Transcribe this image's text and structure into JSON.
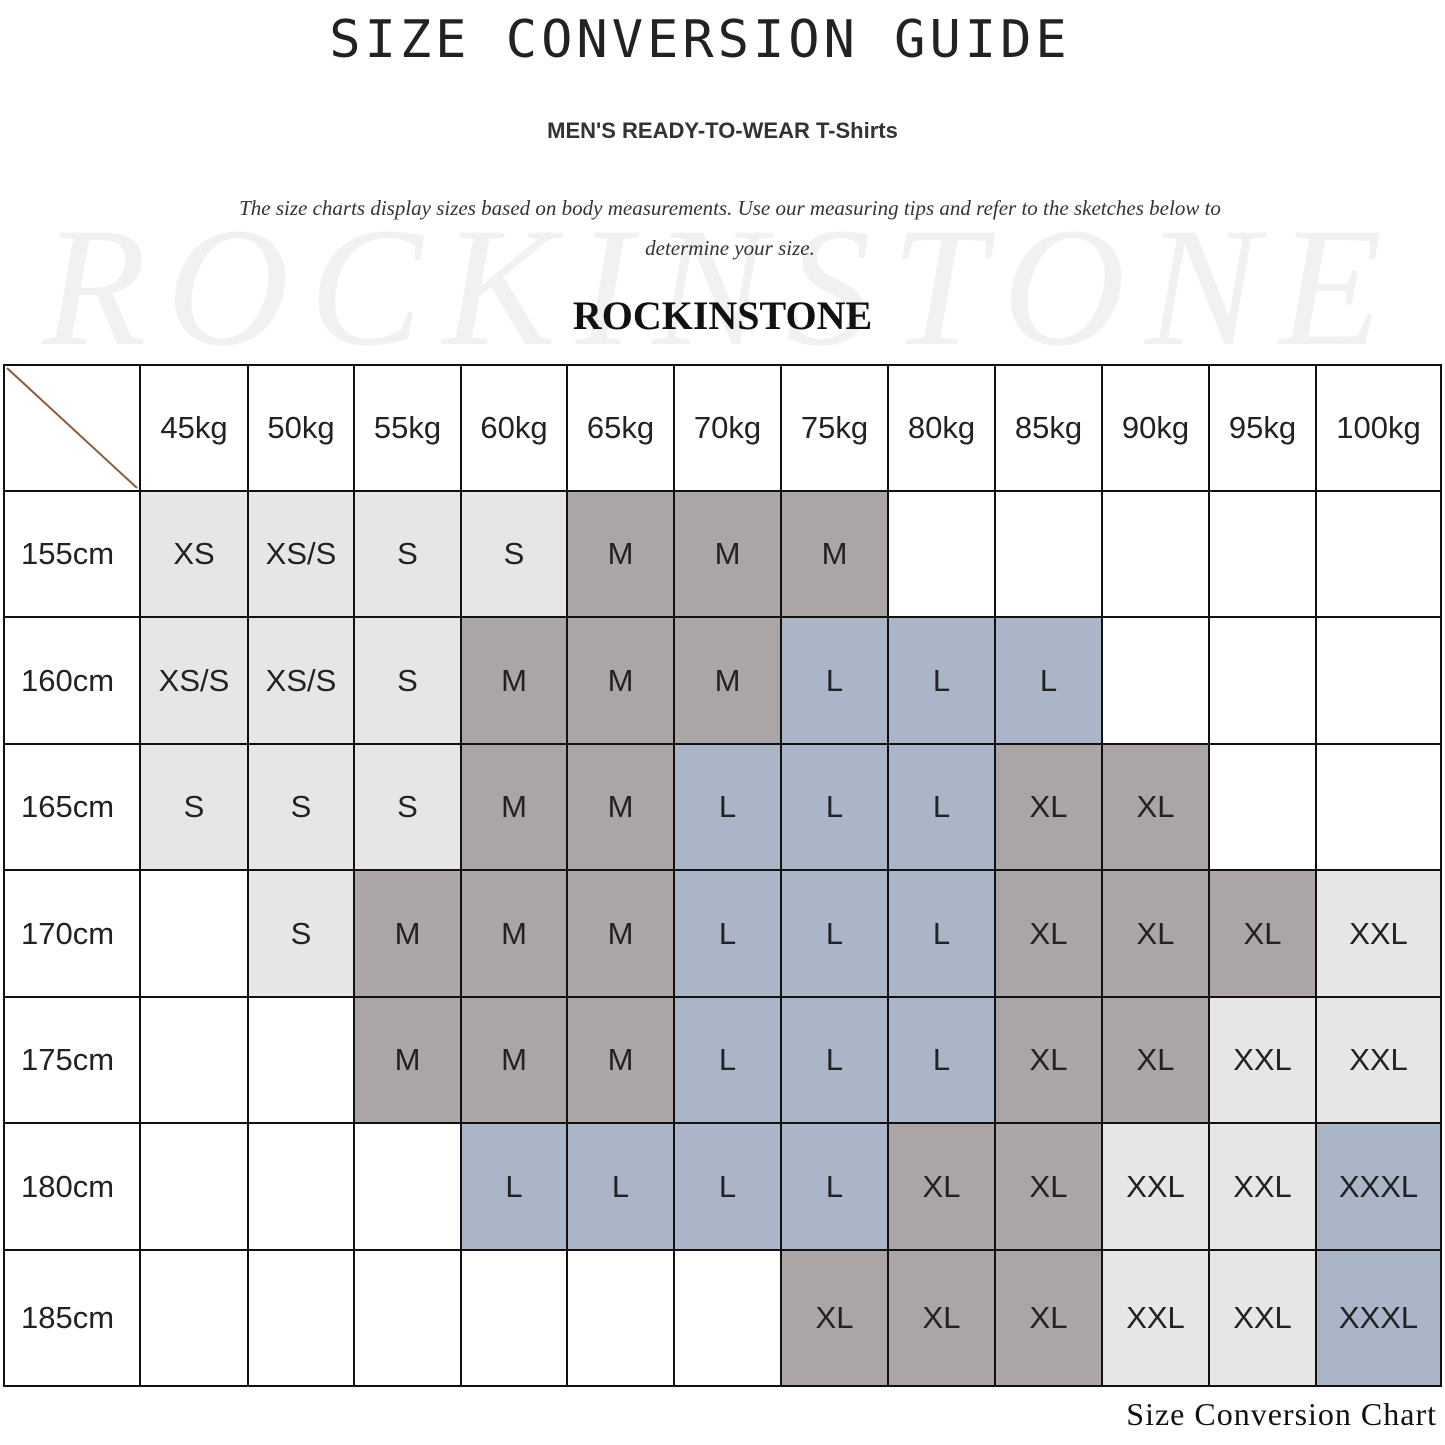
{
  "title": "SIZE CONVERSION GUIDE",
  "subtitle": "MEN'S READY-TO-WEAR T-Shirts",
  "description": "The size charts display sizes based on body measurements. Use our measuring tips and refer to the sketches below to determine your size.",
  "watermark": "ROCKINSTONE",
  "brand": "ROCKINSTONE",
  "footer": "Size Conversion Chart",
  "table": {
    "weights": [
      "45kg",
      "50kg",
      "55kg",
      "60kg",
      "65kg",
      "70kg",
      "75kg",
      "80kg",
      "85kg",
      "90kg",
      "95kg",
      "100kg"
    ],
    "rows": [
      {
        "height": "155cm",
        "sizes": [
          "XS",
          "XS/S",
          "S",
          "S",
          "M",
          "M",
          "M",
          "",
          "",
          "",
          "",
          ""
        ]
      },
      {
        "height": "160cm",
        "sizes": [
          "XS/S",
          "XS/S",
          "S",
          "M",
          "M",
          "M",
          "L",
          "L",
          "L",
          "",
          "",
          ""
        ]
      },
      {
        "height": "165cm",
        "sizes": [
          "S",
          "S",
          "S",
          "M",
          "M",
          "L",
          "L",
          "L",
          "XL",
          "XL",
          "",
          ""
        ]
      },
      {
        "height": "170cm",
        "sizes": [
          "",
          "S",
          "M",
          "M",
          "M",
          "L",
          "L",
          "L",
          "XL",
          "XL",
          "XL",
          "XXL"
        ]
      },
      {
        "height": "175cm",
        "sizes": [
          "",
          "",
          "M",
          "M",
          "M",
          "L",
          "L",
          "L",
          "XL",
          "XL",
          "XXL",
          "XXL"
        ]
      },
      {
        "height": "180cm",
        "sizes": [
          "",
          "",
          "",
          "L",
          "L",
          "L",
          "L",
          "XL",
          "XL",
          "XXL",
          "XXL",
          "XXXL"
        ]
      },
      {
        "height": "185cm",
        "sizes": [
          "",
          "",
          "",
          "",
          "",
          "",
          "XL",
          "XL",
          "XL",
          "XXL",
          "XXL",
          "XXXL"
        ]
      }
    ]
  },
  "size_colors": {
    "XS": "#e6e6e6",
    "XS/S": "#e6e6e6",
    "S": "#e6e6e6",
    "M": "#aba6a5",
    "L": "#aab6c8",
    "XL": "#aba6a5",
    "XXL": "#e6e6e6",
    "XXXL": "#aab6c8"
  },
  "diagonal_color": "#8b5a3c"
}
